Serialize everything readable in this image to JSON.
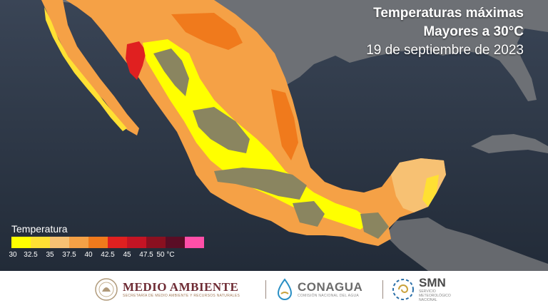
{
  "title": {
    "line1": "Temperaturas máximas",
    "line2": "Mayores a 30°C",
    "date": "19 de septiembre de 2023"
  },
  "legend": {
    "title": "Temperatura",
    "bins": [
      {
        "label": "30",
        "color": "#ffff00"
      },
      {
        "label": "32.5",
        "color": "#ffe033"
      },
      {
        "label": "35",
        "color": "#f7c173"
      },
      {
        "label": "37.5",
        "color": "#f5a146"
      },
      {
        "label": "40",
        "color": "#f07a1c"
      },
      {
        "label": "42.5",
        "color": "#e02020"
      },
      {
        "label": "45",
        "color": "#c41424"
      },
      {
        "label": "47.5",
        "color": "#8a1020"
      },
      {
        "label": "50 °C",
        "color": "#5a0d25"
      },
      {
        "label": "",
        "color": "#ff4fa8"
      }
    ]
  },
  "colors": {
    "sea": "#2b3545",
    "land_outside": "#6b6e73",
    "below_30": "#8a8560"
  },
  "footer": {
    "org1": {
      "name": "MEDIO AMBIENTE",
      "subtitle": "SECRETARÍA DE MEDIO AMBIENTE Y RECURSOS NATURALES",
      "icon": "national-seal-icon"
    },
    "org2": {
      "name": "CONAGUA",
      "subtitle": "COMISIÓN NACIONAL DEL AGUA",
      "icon": "conagua-drop-icon"
    },
    "org3": {
      "name": "SMN",
      "subtitle": "SERVICIO METEOROLÓGICO NACIONAL",
      "icon": "smn-spiral-icon"
    }
  }
}
